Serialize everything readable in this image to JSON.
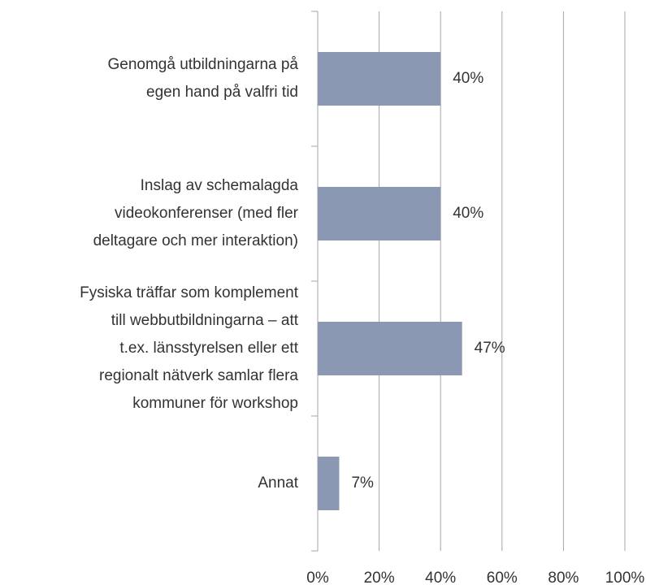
{
  "chart_data": {
    "type": "bar",
    "orientation": "horizontal",
    "categories": [
      "Genomgå utbildningarna på\negen hand på valfri tid",
      "Inslag av schemalagda\nvideokonferenser (med fler\ndeltagare och mer interaktion)",
      "Fysiska träffar som komplement\ntill webbutbildningarna – att\nt.ex. länsstyrelsen eller ett\nregionalt nätverk samlar flera\nkommuner för workshop",
      "Annat"
    ],
    "values": [
      40,
      40,
      47,
      7
    ],
    "value_labels": [
      "40%",
      "40%",
      "47%",
      "7%"
    ],
    "color": "#8a98b4",
    "xlim": [
      0,
      100
    ],
    "xticks": [
      {
        "value": 0,
        "label": "0%"
      },
      {
        "value": 20,
        "label": "20%"
      },
      {
        "value": 40,
        "label": "40%"
      },
      {
        "value": 60,
        "label": "60%"
      },
      {
        "value": 80,
        "label": "80%"
      },
      {
        "value": 100,
        "label": "100%"
      }
    ],
    "grid": true
  }
}
